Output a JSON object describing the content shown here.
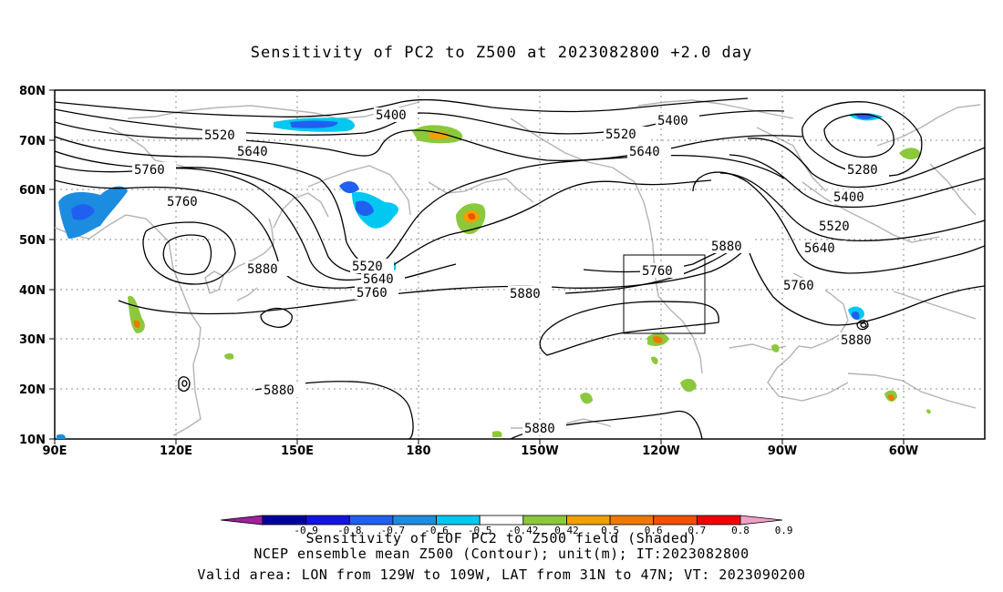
{
  "title": "Sensitivity of PC2 to Z500 at 2023082800 +2.0 day",
  "lat_labels": [
    "80N",
    "70N",
    "60N",
    "50N",
    "40N",
    "30N",
    "20N",
    "10N"
  ],
  "lon_labels": [
    "90E",
    "120E",
    "150E",
    "180",
    "150W",
    "120W",
    "90W",
    "60W"
  ],
  "contour_labels": {
    "c5400_a": "5400",
    "c5400_b": "5400",
    "c5400_c": "5400",
    "c5520_a": "5520",
    "c5520_b": "5520",
    "c5520_c": "5520",
    "c5520_d": "5520",
    "c5640_a": "5640",
    "c5640_b": "5640",
    "c5640_c": "5640",
    "c5640_d": "5640",
    "c5760_a": "5760",
    "c5760_b": "5760",
    "c5760_c": "5760",
    "c5760_d": "5760",
    "c5760_e": "5760",
    "c5880_a": "5880",
    "c5880_b": "5880",
    "c5880_c": "5880",
    "c5880_d": "5880",
    "c5880_e": "5880",
    "c5880_f": "5880",
    "c5280": "5280"
  },
  "colorbar": {
    "colors": [
      "#a020a0",
      "#0000a0",
      "#1414e0",
      "#2060f0",
      "#1c8ce0",
      "#00c8f0",
      "#ffffff",
      "#8cc83c",
      "#f0a000",
      "#f07800",
      "#f05000",
      "#f00000",
      "#f0a0c8"
    ],
    "tick_labels": [
      "-0.9",
      "-0.8",
      "-0.7",
      "-0.6",
      "-0.5",
      "-0.42",
      "0.42",
      "0.5",
      "0.6",
      "0.7",
      "0.8",
      "0.9"
    ]
  },
  "footer": {
    "line1": "Sensitivity of EOF PC2 to Z500 field (Shaded)",
    "line2": "NCEP ensemble mean Z500 (Contour); unit(m); IT:2023082800",
    "line3": "Valid area: LON from 129W to 109W, LAT from 31N to 47N; VT: 2023090200"
  }
}
